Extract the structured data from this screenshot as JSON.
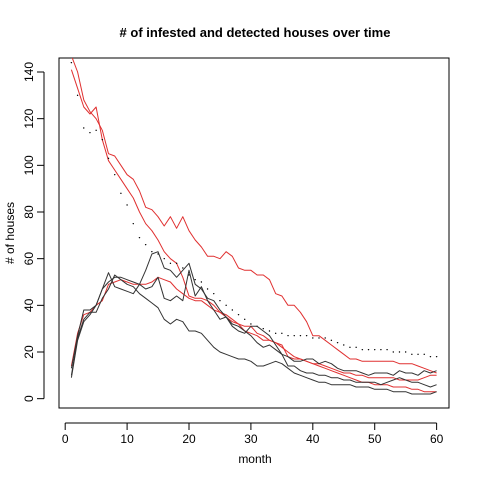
{
  "chart_data": {
    "type": "line",
    "title": "# of infested and detected houses over time",
    "xlabel": "month",
    "ylabel": "# of houses",
    "xlim": [
      -1,
      62
    ],
    "ylim": [
      -4,
      146
    ],
    "xticks": [
      0,
      10,
      20,
      30,
      40,
      50,
      60
    ],
    "yticks": [
      0,
      20,
      40,
      60,
      80,
      100,
      120,
      140
    ],
    "grid": false,
    "legend": "none",
    "x": [
      1,
      2,
      3,
      4,
      5,
      6,
      7,
      8,
      9,
      10,
      11,
      12,
      13,
      14,
      15,
      16,
      17,
      18,
      19,
      20,
      21,
      22,
      23,
      24,
      25,
      26,
      27,
      28,
      29,
      30,
      31,
      32,
      33,
      34,
      35,
      36,
      37,
      38,
      39,
      40,
      41,
      42,
      43,
      44,
      45,
      46,
      47,
      48,
      49,
      50,
      51,
      52,
      53,
      54,
      55,
      56,
      57,
      58,
      59,
      60
    ],
    "series": [
      {
        "color": "#e03030",
        "style": "line",
        "values": [
          147,
          140,
          128,
          123,
          120,
          115,
          105,
          104,
          100,
          96,
          94,
          89,
          82,
          81,
          78,
          74,
          78,
          73,
          78,
          72,
          68,
          65,
          61,
          61,
          60,
          63,
          61,
          56,
          55,
          55,
          53,
          53,
          51,
          45,
          44,
          40,
          40,
          37,
          33,
          27,
          27,
          25,
          23,
          21,
          19,
          17,
          17,
          16,
          16,
          16,
          16,
          16,
          16,
          15,
          15,
          15,
          14,
          13,
          12,
          11
        ]
      },
      {
        "color": "#e03030",
        "style": "line",
        "values": [
          141,
          133,
          125,
          122,
          125,
          111,
          102,
          98,
          94,
          90,
          86,
          80,
          75,
          72,
          68,
          63,
          60,
          58,
          52,
          44,
          43,
          43,
          42,
          40,
          37,
          36,
          34,
          32,
          29,
          28,
          27,
          25,
          25,
          24,
          23,
          18,
          17,
          17,
          16,
          15,
          15,
          14,
          13,
          12,
          11,
          11,
          10,
          10,
          9,
          9,
          9,
          9,
          9,
          8,
          8,
          8,
          8,
          9,
          10,
          10
        ]
      },
      {
        "color": "#e03030",
        "style": "line",
        "values": [
          14,
          28,
          36,
          37,
          40,
          42,
          49,
          50,
          51,
          50,
          49,
          49,
          49,
          50,
          52,
          51,
          50,
          47,
          45,
          43,
          42,
          42,
          40,
          38,
          37,
          35,
          33,
          32,
          31,
          31,
          28,
          27,
          25,
          24,
          22,
          20,
          18,
          17,
          16,
          15,
          14,
          13,
          12,
          11,
          10,
          9,
          8,
          7,
          7,
          6,
          6,
          6,
          5,
          5,
          5,
          4,
          4,
          3,
          3,
          3
        ]
      },
      {
        "color": "#000000",
        "style": "points",
        "values": [
          144,
          130,
          116,
          114,
          115,
          111,
          103,
          96,
          88,
          83,
          75,
          69,
          66,
          63,
          62,
          60,
          58,
          58,
          56,
          53,
          51,
          50,
          47,
          45,
          42,
          40,
          38,
          36,
          34,
          32,
          31,
          30,
          29,
          28,
          28,
          27,
          27,
          27,
          27,
          26,
          26,
          26,
          25,
          24,
          23,
          22,
          22,
          21,
          21,
          21,
          21,
          21,
          20,
          20,
          20,
          19,
          19,
          19,
          18,
          18
        ]
      },
      {
        "color": "#333333",
        "style": "line",
        "values": [
          13,
          27,
          38,
          38,
          40,
          47,
          50,
          52,
          52,
          51,
          50,
          49,
          55,
          62,
          63,
          56,
          55,
          52,
          55,
          58,
          49,
          47,
          43,
          42,
          38,
          35,
          32,
          31,
          29,
          27,
          24,
          22,
          23,
          21,
          19,
          18,
          16,
          16,
          17,
          17,
          15,
          16,
          15,
          13,
          12,
          12,
          12,
          11,
          10,
          11,
          11,
          11,
          10,
          12,
          11,
          11,
          10,
          12,
          11,
          12
        ]
      },
      {
        "color": "#333333",
        "style": "line",
        "values": [
          9,
          25,
          33,
          36,
          40,
          47,
          54,
          48,
          47,
          46,
          45,
          49,
          47,
          48,
          52,
          43,
          42,
          44,
          42,
          55,
          44,
          48,
          42,
          38,
          34,
          35,
          31,
          29,
          28,
          31,
          31,
          29,
          27,
          23,
          19,
          14,
          14,
          12,
          11,
          11,
          10,
          10,
          9,
          9,
          8,
          8,
          7,
          7,
          7,
          7,
          6,
          7,
          8,
          9,
          8,
          7,
          7,
          6,
          5,
          6
        ]
      },
      {
        "color": "#333333",
        "style": "line",
        "values": [
          10,
          26,
          34,
          37,
          37,
          43,
          47,
          53,
          51,
          49,
          48,
          45,
          43,
          41,
          39,
          34,
          32,
          34,
          33,
          29,
          29,
          28,
          25,
          22,
          20,
          19,
          18,
          17,
          17,
          16,
          14,
          14,
          15,
          16,
          15,
          13,
          11,
          10,
          9,
          8,
          7,
          7,
          6,
          6,
          6,
          6,
          5,
          5,
          5,
          4,
          4,
          4,
          3,
          3,
          3,
          2,
          2,
          2,
          2,
          3
        ]
      }
    ]
  }
}
